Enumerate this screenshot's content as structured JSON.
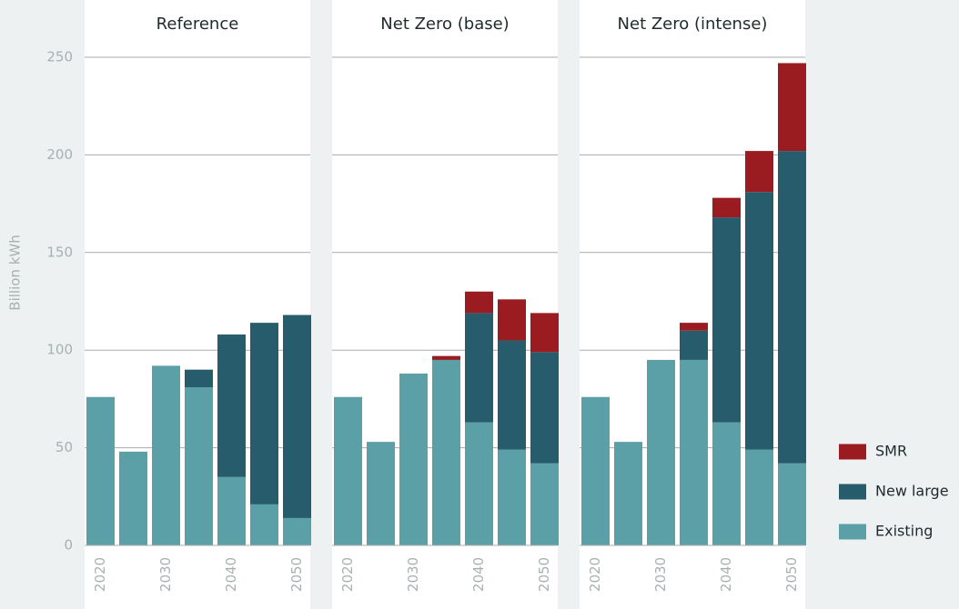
{
  "chart_data": {
    "type": "bar",
    "stacked": true,
    "ylabel": "Billion kWh",
    "ylim": [
      0,
      250
    ],
    "yticks": [
      0,
      50,
      100,
      150,
      200,
      250
    ],
    "grid": true,
    "series": [
      {
        "name": "Existing",
        "color": "#5b9fa7"
      },
      {
        "name": "New large",
        "color": "#265c6c"
      },
      {
        "name": "SMR",
        "color": "#9a1c20"
      }
    ],
    "panels": [
      {
        "title": "Reference",
        "categories": [
          "2020",
          null,
          "2030",
          null,
          "2040",
          null,
          "2050"
        ],
        "series": [
          {
            "values": [
              76,
              48,
              92,
              81,
              35,
              21,
              14
            ]
          },
          {
            "values": [
              0,
              0,
              0,
              9,
              73,
              93,
              104
            ]
          },
          {
            "values": [
              0,
              0,
              0,
              0,
              0,
              0,
              0
            ]
          }
        ]
      },
      {
        "title": "Net Zero (base)",
        "categories": [
          "2020",
          null,
          "2030",
          null,
          "2040",
          null,
          "2050"
        ],
        "series": [
          {
            "values": [
              76,
              53,
              88,
              95,
              63,
              49,
              42
            ]
          },
          {
            "values": [
              0,
              0,
              0,
              0,
              56,
              56,
              57
            ]
          },
          {
            "values": [
              0,
              0,
              0,
              2,
              11,
              21,
              20
            ]
          }
        ]
      },
      {
        "title": "Net Zero (intense)",
        "categories": [
          "2020",
          null,
          "2030",
          null,
          "2040",
          null,
          "2050"
        ],
        "series": [
          {
            "values": [
              76,
              53,
              95,
              95,
              63,
              49,
              42
            ]
          },
          {
            "values": [
              0,
              0,
              0,
              15,
              105,
              132,
              160
            ]
          },
          {
            "values": [
              0,
              0,
              0,
              4,
              10,
              21,
              45
            ]
          }
        ]
      }
    ]
  }
}
